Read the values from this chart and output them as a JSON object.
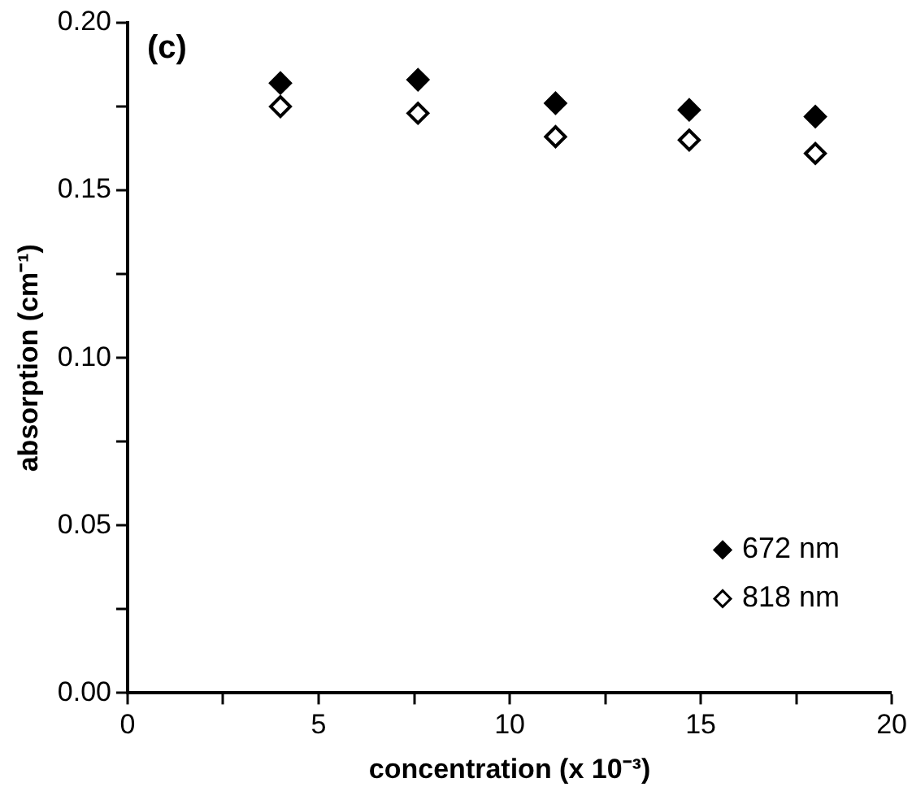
{
  "chart_data": {
    "type": "scatter",
    "xlabel": "concentration (x 10⁻³)",
    "ylabel": "absorption (cm⁻¹)",
    "annotations": [
      "(c)"
    ],
    "xlim": [
      0,
      20
    ],
    "xticks": [
      0,
      {
        "value": 2.5,
        "label": null
      },
      5,
      {
        "value": 7.5,
        "label": null
      },
      10,
      {
        "value": 12.5,
        "label": null
      },
      15,
      {
        "value": 17.5,
        "label": null
      },
      20
    ],
    "ylim": [
      0,
      0.2
    ],
    "yticks": [
      {
        "value": 0,
        "label": "0.00"
      },
      {
        "value": 0.025,
        "label": null
      },
      {
        "value": 0.05,
        "label": "0.05"
      },
      {
        "value": 0.075,
        "label": null
      },
      {
        "value": 0.1,
        "label": "0.10"
      },
      {
        "value": 0.125,
        "label": null
      },
      {
        "value": 0.15,
        "label": "0.15"
      },
      {
        "value": 0.175,
        "label": null
      },
      {
        "value": 0.2,
        "label": "0.20"
      }
    ],
    "x": [
      4,
      7.6,
      11.2,
      14.7,
      18
    ],
    "series": [
      {
        "name": "672 nm",
        "color": "#000000",
        "values": [
          0.182,
          0.183,
          0.176,
          0.174,
          0.172
        ]
      },
      {
        "name": "818 nm",
        "color": "#000000",
        "values": [
          0.175,
          0.173,
          0.166,
          0.165,
          0.161
        ]
      }
    ],
    "marker": "diamond",
    "legend": "bottom right",
    "grid": false
  }
}
